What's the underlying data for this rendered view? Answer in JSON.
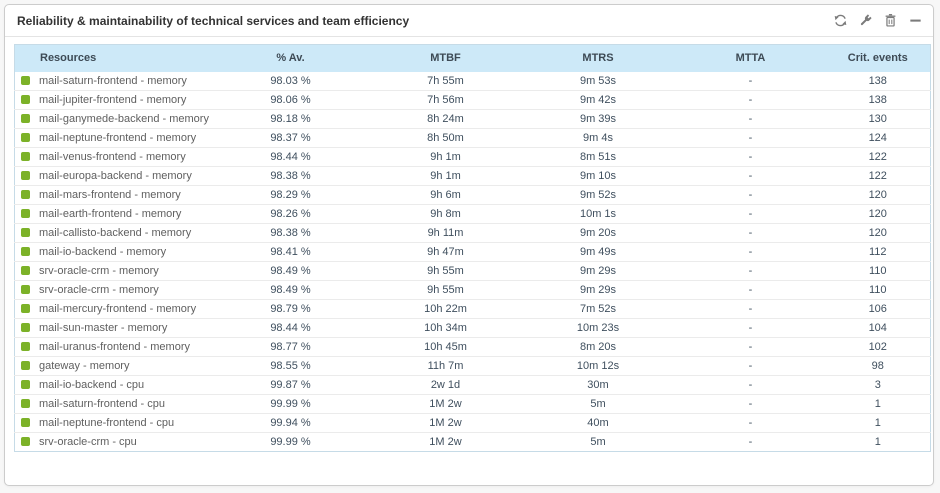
{
  "widget": {
    "title": "Reliability & maintainability of technical services and team efficiency",
    "toolbar": [
      {
        "name": "refresh",
        "icon": "refresh-icon"
      },
      {
        "name": "edit",
        "icon": "wrench-icon"
      },
      {
        "name": "delete",
        "icon": "trash-icon"
      },
      {
        "name": "minimize",
        "icon": "minimize-icon"
      }
    ]
  },
  "colors": {
    "status_ok_green": "#7cb228",
    "header_bg": "#cde9f8",
    "value_text": "#3f4f5e",
    "resource_text": "#5f5f5f"
  },
  "table": {
    "columns": [
      {
        "key": "resource",
        "label": "Resources"
      },
      {
        "key": "availability",
        "label": "% Av."
      },
      {
        "key": "mtbf",
        "label": "MTBF"
      },
      {
        "key": "mtrs",
        "label": "MTRS"
      },
      {
        "key": "mtta",
        "label": "MTTA"
      },
      {
        "key": "crit_events",
        "label": "Crit. events"
      }
    ],
    "rows": [
      {
        "status": "ok",
        "resource": "mail-saturn-frontend - memory",
        "availability": "98.03 %",
        "mtbf": "7h 55m",
        "mtrs": "9m 53s",
        "mtta": "-",
        "crit_events": "138"
      },
      {
        "status": "ok",
        "resource": "mail-jupiter-frontend - memory",
        "availability": "98.06 %",
        "mtbf": "7h 56m",
        "mtrs": "9m 42s",
        "mtta": "-",
        "crit_events": "138"
      },
      {
        "status": "ok",
        "resource": "mail-ganymede-backend - memory",
        "availability": "98.18 %",
        "mtbf": "8h 24m",
        "mtrs": "9m 39s",
        "mtta": "-",
        "crit_events": "130"
      },
      {
        "status": "ok",
        "resource": "mail-neptune-frontend - memory",
        "availability": "98.37 %",
        "mtbf": "8h 50m",
        "mtrs": "9m 4s",
        "mtta": "-",
        "crit_events": "124"
      },
      {
        "status": "ok",
        "resource": "mail-venus-frontend - memory",
        "availability": "98.44 %",
        "mtbf": "9h 1m",
        "mtrs": "8m 51s",
        "mtta": "-",
        "crit_events": "122"
      },
      {
        "status": "ok",
        "resource": "mail-europa-backend - memory",
        "availability": "98.38 %",
        "mtbf": "9h 1m",
        "mtrs": "9m 10s",
        "mtta": "-",
        "crit_events": "122"
      },
      {
        "status": "ok",
        "resource": "mail-mars-frontend - memory",
        "availability": "98.29 %",
        "mtbf": "9h 6m",
        "mtrs": "9m 52s",
        "mtta": "-",
        "crit_events": "120"
      },
      {
        "status": "ok",
        "resource": "mail-earth-frontend - memory",
        "availability": "98.26 %",
        "mtbf": "9h 8m",
        "mtrs": "10m 1s",
        "mtta": "-",
        "crit_events": "120"
      },
      {
        "status": "ok",
        "resource": "mail-callisto-backend - memory",
        "availability": "98.38 %",
        "mtbf": "9h 11m",
        "mtrs": "9m 20s",
        "mtta": "-",
        "crit_events": "120"
      },
      {
        "status": "ok",
        "resource": "mail-io-backend - memory",
        "availability": "98.41 %",
        "mtbf": "9h 47m",
        "mtrs": "9m 49s",
        "mtta": "-",
        "crit_events": "112"
      },
      {
        "status": "ok",
        "resource": "srv-oracle-crm - memory",
        "availability": "98.49 %",
        "mtbf": "9h 55m",
        "mtrs": "9m 29s",
        "mtta": "-",
        "crit_events": "110"
      },
      {
        "status": "ok",
        "resource": "srv-oracle-crm - memory",
        "availability": "98.49 %",
        "mtbf": "9h 55m",
        "mtrs": "9m 29s",
        "mtta": "-",
        "crit_events": "110"
      },
      {
        "status": "ok",
        "resource": "mail-mercury-frontend - memory",
        "availability": "98.79 %",
        "mtbf": "10h 22m",
        "mtrs": "7m 52s",
        "mtta": "-",
        "crit_events": "106"
      },
      {
        "status": "ok",
        "resource": "mail-sun-master - memory",
        "availability": "98.44 %",
        "mtbf": "10h 34m",
        "mtrs": "10m 23s",
        "mtta": "-",
        "crit_events": "104"
      },
      {
        "status": "ok",
        "resource": "mail-uranus-frontend - memory",
        "availability": "98.77 %",
        "mtbf": "10h 45m",
        "mtrs": "8m 20s",
        "mtta": "-",
        "crit_events": "102"
      },
      {
        "status": "ok",
        "resource": "gateway - memory",
        "availability": "98.55 %",
        "mtbf": "11h 7m",
        "mtrs": "10m 12s",
        "mtta": "-",
        "crit_events": "98"
      },
      {
        "status": "ok",
        "resource": "mail-io-backend - cpu",
        "availability": "99.87 %",
        "mtbf": "2w 1d",
        "mtrs": "30m",
        "mtta": "-",
        "crit_events": "3"
      },
      {
        "status": "ok",
        "resource": "mail-saturn-frontend - cpu",
        "availability": "99.99 %",
        "mtbf": "1M 2w",
        "mtrs": "5m",
        "mtta": "-",
        "crit_events": "1"
      },
      {
        "status": "ok",
        "resource": "mail-neptune-frontend - cpu",
        "availability": "99.94 %",
        "mtbf": "1M 2w",
        "mtrs": "40m",
        "mtta": "-",
        "crit_events": "1"
      },
      {
        "status": "ok",
        "resource": "srv-oracle-crm - cpu",
        "availability": "99.99 %",
        "mtbf": "1M 2w",
        "mtrs": "5m",
        "mtta": "-",
        "crit_events": "1"
      }
    ]
  }
}
